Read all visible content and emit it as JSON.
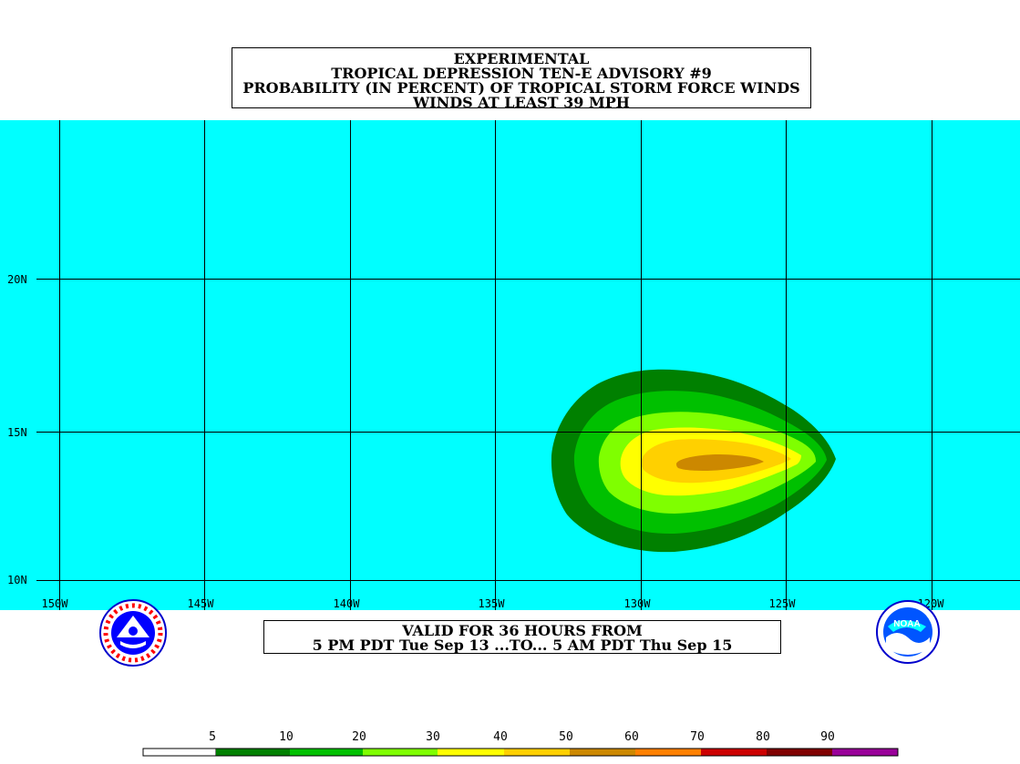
{
  "title": {
    "line1": "EXPERIMENTAL",
    "line2": "TROPICAL DEPRESSION TEN-E ADVISORY #9",
    "line3": "PROBABILITY (IN PERCENT) OF TROPICAL STORM FORCE WINDS",
    "line4": "WINDS AT LEAST 39 MPH"
  },
  "valid": {
    "line1": "VALID FOR 36 HOURS FROM",
    "line2": "5 PM PDT Tue Sep 13 ...TO... 5 AM PDT Thu Sep 15"
  },
  "map": {
    "ocean_color": "#00ffff",
    "grid_color": "#000000",
    "lon_labels": [
      "150W",
      "145W",
      "140W",
      "135W",
      "130W",
      "125W",
      "120W"
    ],
    "lat_labels": [
      "20N",
      "15N",
      "10N"
    ]
  },
  "contours": {
    "center": {
      "lon": -127.5,
      "lat": 14.0
    },
    "levels": [
      {
        "min": 5,
        "color": "#008000"
      },
      {
        "min": 10,
        "color": "#00c000"
      },
      {
        "min": 20,
        "color": "#7fff00"
      },
      {
        "min": 30,
        "color": "#ffff00"
      },
      {
        "min": 40,
        "color": "#ffd000"
      },
      {
        "min": 50,
        "color": "#cc8800"
      }
    ]
  },
  "legend": {
    "labels": [
      "5",
      "10",
      "20",
      "30",
      "40",
      "50",
      "60",
      "70",
      "80",
      "90"
    ],
    "colors": [
      "#ffffff",
      "#008000",
      "#00c000",
      "#7fff00",
      "#ffff00",
      "#ffd000",
      "#cc8800",
      "#ff8000",
      "#cc0000",
      "#800000",
      "#990099"
    ]
  },
  "logos": {
    "left": "nws-logo-icon",
    "right": "noaa-logo-icon",
    "right_text": "NOAA"
  }
}
